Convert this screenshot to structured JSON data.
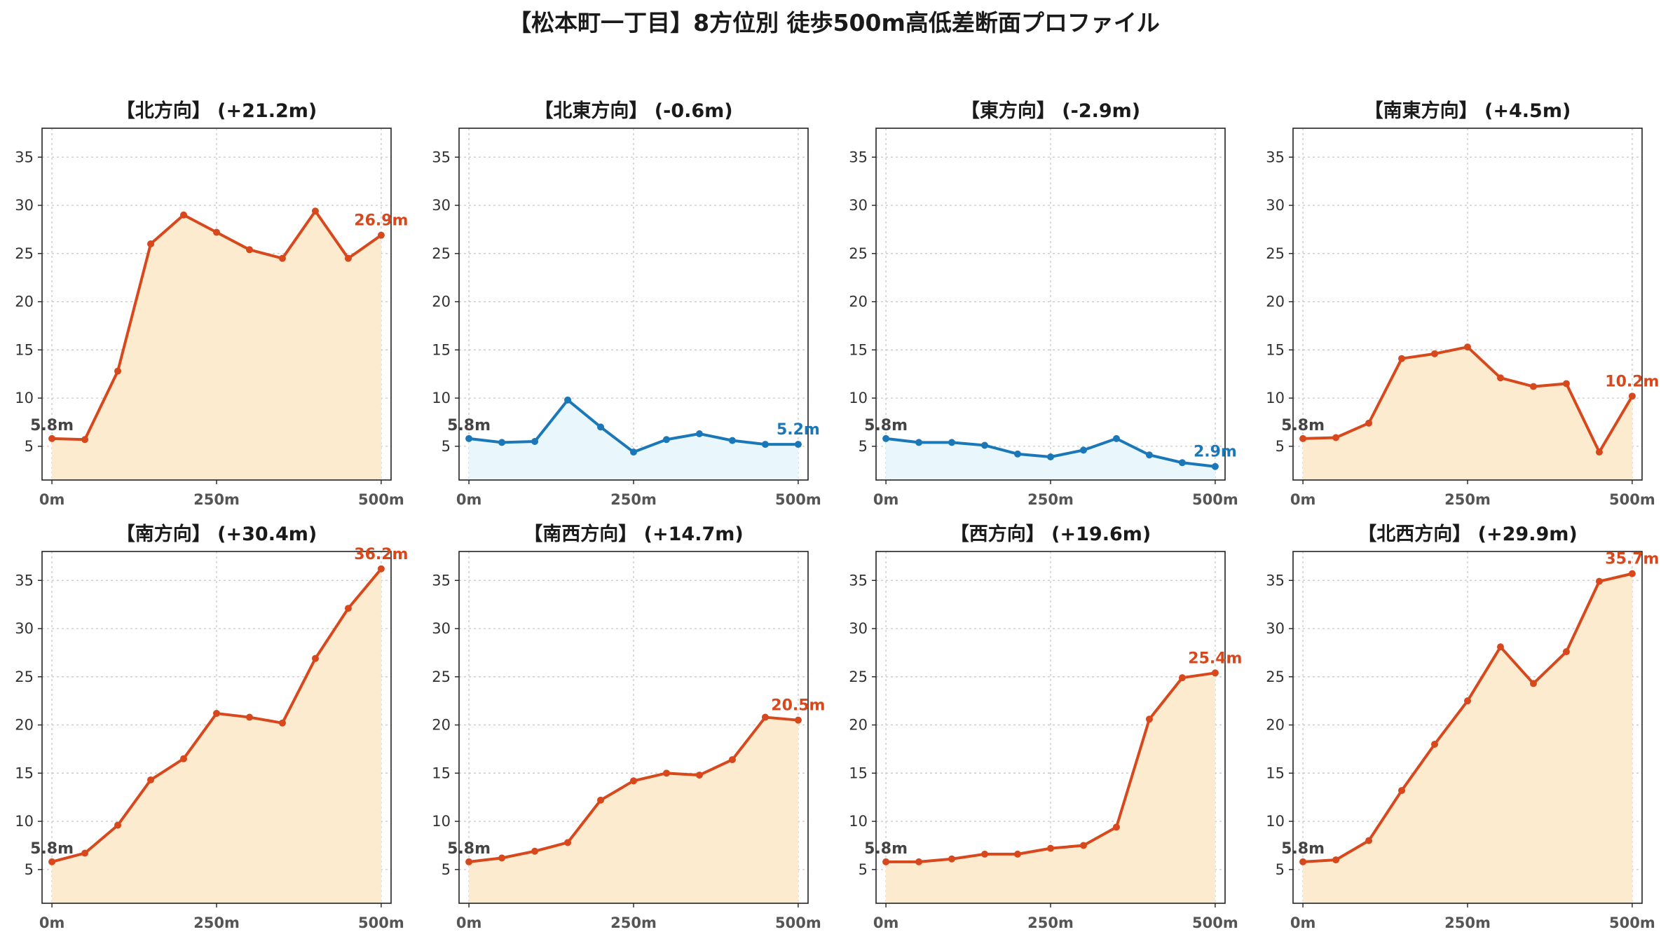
{
  "chart_data": {
    "title": "【松本町一丁目】8方位別 徒歩500m高低差断面プロファイル",
    "type": "line",
    "x": [
      0,
      50,
      100,
      150,
      200,
      250,
      300,
      350,
      400,
      450,
      500
    ],
    "x_ticks": [
      "0m",
      "250m",
      "500m"
    ],
    "y_ticks": [
      5,
      10,
      15,
      20,
      25,
      30,
      35
    ],
    "ylim": [
      1.5,
      38
    ],
    "xlim": [
      -15,
      515
    ],
    "grid": true,
    "colors": {
      "uphill_line": "#d7481c",
      "uphill_fill": "#fdebcf",
      "downhill_line": "#1a78b8",
      "downhill_fill": "#e9f6fb"
    },
    "panels": [
      {
        "title": "【北方向】 (+21.2m)",
        "trend": "up",
        "values": [
          5.8,
          5.7,
          12.8,
          26.0,
          29.0,
          27.2,
          25.4,
          24.5,
          29.4,
          24.5,
          26.9
        ],
        "start_label": "5.8m",
        "end_label": "26.9m"
      },
      {
        "title": "【北東方向】 (-0.6m)",
        "trend": "down",
        "values": [
          5.8,
          5.4,
          5.5,
          9.8,
          7.0,
          4.4,
          5.7,
          6.3,
          5.6,
          5.2,
          5.2
        ],
        "start_label": "5.8m",
        "end_label": "5.2m"
      },
      {
        "title": "【東方向】 (-2.9m)",
        "trend": "down",
        "values": [
          5.8,
          5.4,
          5.4,
          5.1,
          4.2,
          3.9,
          4.6,
          5.8,
          4.1,
          3.3,
          2.9
        ],
        "start_label": "5.8m",
        "end_label": "2.9m"
      },
      {
        "title": "【南東方向】 (+4.5m)",
        "trend": "up",
        "values": [
          5.8,
          5.9,
          7.4,
          14.1,
          14.6,
          15.3,
          12.1,
          11.2,
          11.5,
          4.4,
          10.2
        ],
        "start_label": "5.8m",
        "end_label": "10.2m"
      },
      {
        "title": "【南方向】 (+30.4m)",
        "trend": "up",
        "values": [
          5.8,
          6.7,
          9.6,
          14.3,
          16.5,
          21.2,
          20.8,
          20.2,
          26.9,
          32.1,
          36.2
        ],
        "start_label": "5.8m",
        "end_label": "36.2m"
      },
      {
        "title": "【南西方向】 (+14.7m)",
        "trend": "up",
        "values": [
          5.8,
          6.2,
          6.9,
          7.8,
          12.2,
          14.2,
          15.0,
          14.8,
          16.4,
          20.8,
          20.5
        ],
        "start_label": "5.8m",
        "end_label": "20.5m"
      },
      {
        "title": "【西方向】 (+19.6m)",
        "trend": "up",
        "values": [
          5.8,
          5.8,
          6.1,
          6.6,
          6.6,
          7.2,
          7.5,
          9.4,
          20.6,
          24.9,
          25.4
        ],
        "start_label": "5.8m",
        "end_label": "25.4m"
      },
      {
        "title": "【北西方向】 (+29.9m)",
        "trend": "up",
        "values": [
          5.8,
          6.0,
          8.0,
          13.2,
          18.0,
          22.5,
          28.1,
          24.3,
          27.6,
          34.9,
          35.7
        ],
        "start_label": "5.8m",
        "end_label": "35.7m"
      }
    ]
  }
}
